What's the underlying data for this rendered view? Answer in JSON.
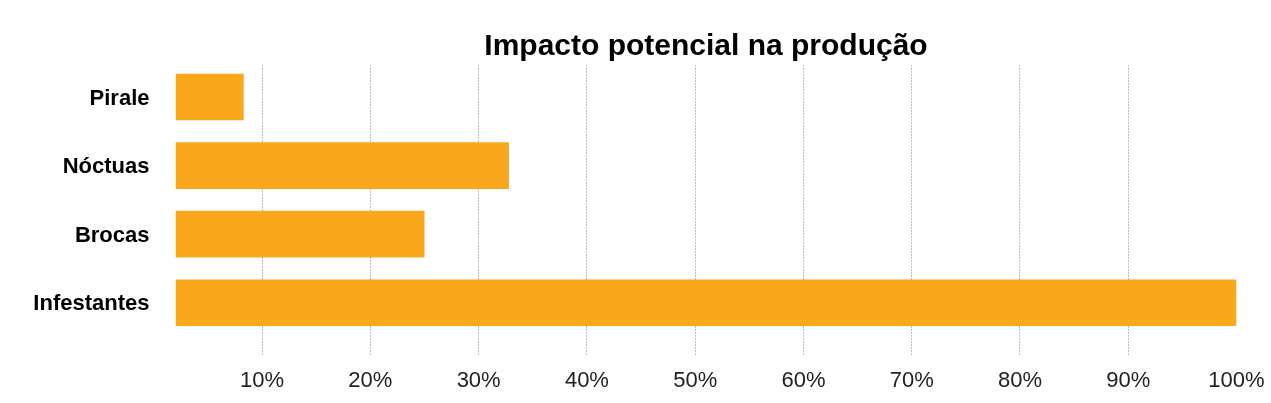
{
  "chart_data": {
    "type": "bar",
    "orientation": "horizontal",
    "title": "Impacto potencial na produção",
    "categories": [
      "Pirale",
      "Nóctuas",
      "Brocas",
      "Infestantes"
    ],
    "values": [
      6.3,
      30.8,
      23,
      98
    ],
    "base": [
      2,
      2,
      2,
      2
    ],
    "color": "#f9a81c",
    "xlim": [
      2,
      100
    ],
    "xticks": [
      {
        "value": 10,
        "label": "10%"
      },
      {
        "value": 20,
        "label": "20%"
      },
      {
        "value": 30,
        "label": "30%"
      },
      {
        "value": 40,
        "label": "40%"
      },
      {
        "value": 50,
        "label": "50%"
      },
      {
        "value": 60,
        "label": "60%"
      },
      {
        "value": 70,
        "label": "70%"
      },
      {
        "value": 80,
        "label": "80%"
      },
      {
        "value": 90,
        "label": "90%"
      },
      {
        "value": 100,
        "label": "100%"
      }
    ],
    "grid": "x"
  }
}
